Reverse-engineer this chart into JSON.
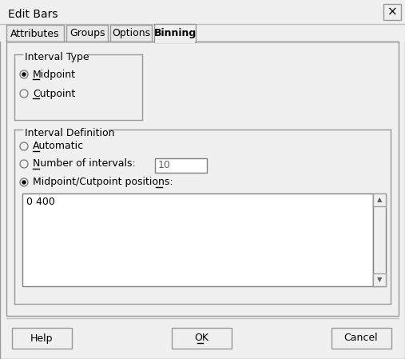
{
  "title": "Edit Bars",
  "bg_color": "#f0f0f0",
  "white": "#ffffff",
  "border_light": "#c0c0c0",
  "border_dark": "#808080",
  "border_outer": "#999999",
  "text_color": "#000000",
  "tabs": [
    "Attributes",
    "Groups",
    "Options",
    "Binning"
  ],
  "interval_type_label": "Interval Type",
  "radio1": "Midpoint",
  "radio2": "Cutpoint",
  "radio1_checked": true,
  "radio2_checked": false,
  "interval_def_label": "Interval Definition",
  "auto_label": "Automatic",
  "num_intervals_label": "Number of intervals:",
  "num_intervals_value": "10",
  "midcut_label": "Midpoint/Cutpoint positions:",
  "midcut_value": "0 400",
  "auto_checked": false,
  "num_checked": false,
  "midcut_checked": true,
  "btn_help": "Help",
  "btn_ok": "OK",
  "btn_cancel": "Cancel",
  "close_x": "×"
}
